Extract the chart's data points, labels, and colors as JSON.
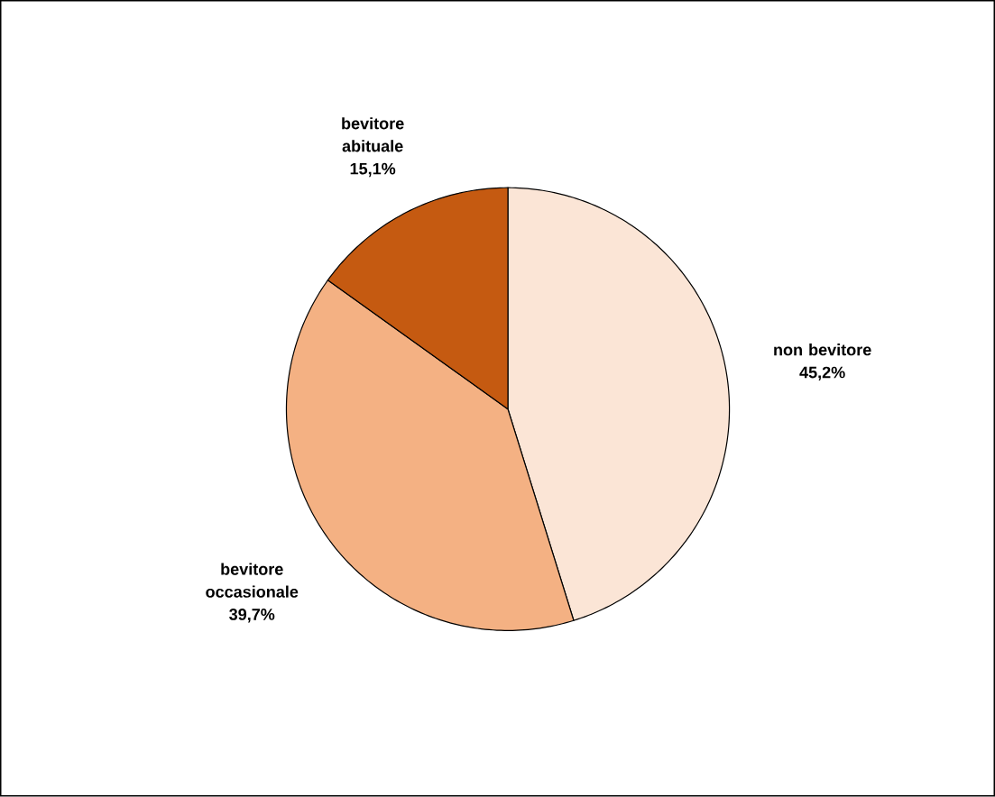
{
  "chart_data": {
    "type": "pie",
    "categories": [
      "non bevitore",
      "bevitore occasionale",
      "bevitore abituale"
    ],
    "values": [
      45.2,
      39.7,
      15.1
    ],
    "colors": [
      "#fbe5d6",
      "#f4b183",
      "#c55a11"
    ],
    "value_labels": [
      "45,2%",
      "39,7%",
      "15,1%"
    ]
  }
}
